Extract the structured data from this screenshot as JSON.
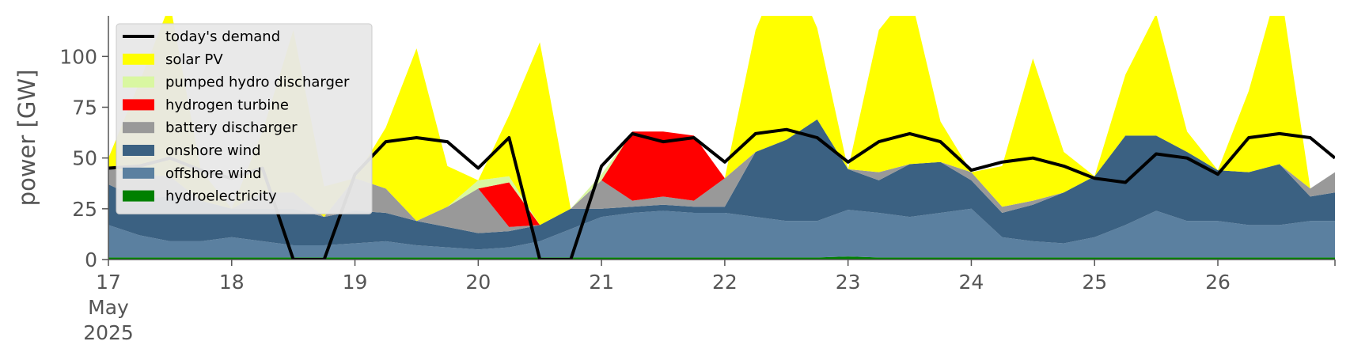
{
  "chart_data": {
    "type": "area",
    "title": "",
    "xlabel": "",
    "ylabel": "power [GW]",
    "x_start": "2025-05-17",
    "x_end": "2025-05-26 23:00",
    "xlim_days": [
      17,
      26.95
    ],
    "ylim": [
      0,
      120
    ],
    "yticks": [
      0,
      25,
      50,
      75,
      100
    ],
    "xtick_labels": [
      "17",
      "18",
      "19",
      "20",
      "21",
      "22",
      "23",
      "24",
      "25",
      "26"
    ],
    "xtick_sublabels": [
      "May",
      "2025"
    ],
    "grid": false,
    "legend_position": "upper-left",
    "x": [
      17.0,
      17.25,
      17.5,
      17.75,
      18.0,
      18.25,
      18.5,
      18.75,
      19.0,
      19.25,
      19.5,
      19.75,
      20.0,
      20.25,
      20.5,
      20.75,
      21.0,
      21.25,
      21.5,
      21.75,
      22.0,
      22.25,
      22.5,
      22.75,
      23.0,
      23.25,
      23.5,
      23.75,
      24.0,
      24.25,
      24.5,
      24.75,
      25.0,
      25.25,
      25.5,
      25.75,
      26.0,
      26.25,
      26.5,
      26.75,
      26.95
    ],
    "series": [
      {
        "name": "hydroelectricity",
        "color": "#008000",
        "values": [
          1,
          1,
          1,
          1,
          1,
          1,
          1,
          1,
          1,
          1,
          1,
          1,
          1,
          1,
          1,
          1,
          1,
          1,
          1,
          1,
          1,
          1,
          1,
          1,
          1.5,
          1,
          1,
          1,
          1,
          1,
          1,
          1,
          1,
          1,
          1,
          1,
          1,
          1,
          1,
          1,
          1
        ]
      },
      {
        "name": "offshore wind",
        "color": "#5b80a0",
        "values": [
          16,
          11,
          8,
          8,
          10,
          8,
          6,
          6,
          7,
          8,
          6,
          5,
          4,
          5,
          8,
          14,
          20,
          22,
          23,
          22,
          22,
          20,
          18,
          18,
          23,
          22,
          20,
          22,
          24,
          10,
          8,
          7,
          10,
          16,
          23,
          18,
          18,
          16,
          16,
          18,
          18
        ]
      },
      {
        "name": "onshore wind",
        "color": "#3b6182",
        "values": [
          20,
          18,
          22,
          20,
          14,
          16,
          18,
          14,
          16,
          14,
          12,
          10,
          8,
          8,
          8,
          10,
          4,
          3,
          3,
          3,
          3,
          32,
          40,
          50,
          20,
          16,
          26,
          25,
          14,
          12,
          18,
          25,
          30,
          44,
          37,
          34,
          25,
          26,
          30,
          12,
          14
        ]
      },
      {
        "name": "battery discharger",
        "color": "#999999",
        "values": [
          8,
          12,
          10,
          0,
          0,
          8,
          8,
          0,
          16,
          12,
          0,
          10,
          22,
          2,
          0,
          0,
          14,
          3,
          4,
          3,
          14,
          0,
          0,
          0,
          0,
          4,
          0,
          0,
          4,
          3,
          2,
          0,
          0,
          0,
          0,
          0,
          0,
          0,
          0,
          4,
          10
        ]
      },
      {
        "name": "hydrogen turbine",
        "color": "#ff0000",
        "values": [
          0,
          0,
          0,
          0,
          0,
          0,
          0,
          0,
          0,
          0,
          0,
          0,
          0,
          22,
          0,
          0,
          0,
          34,
          32,
          32,
          0,
          0,
          0,
          0,
          0,
          0,
          0,
          0,
          0,
          0,
          0,
          0,
          0,
          0,
          0,
          0,
          0,
          0,
          0,
          0,
          0
        ]
      },
      {
        "name": "pumped hydro discharger",
        "color": "#d9f7a1",
        "values": [
          0,
          0,
          0,
          0,
          0,
          0,
          0,
          0,
          0,
          0,
          0,
          0,
          4,
          3,
          0,
          0,
          3,
          0,
          0,
          0,
          0,
          0,
          0,
          0,
          0,
          0,
          0,
          0,
          0,
          0,
          0,
          0,
          0,
          0,
          0,
          0,
          0,
          0,
          0,
          0,
          0
        ]
      },
      {
        "name": "solar PV",
        "color": "#ffff00",
        "values": [
          5,
          45,
          85,
          15,
          0,
          30,
          80,
          15,
          0,
          30,
          85,
          20,
          0,
          30,
          90,
          0,
          0,
          0,
          0,
          0,
          0,
          60,
          90,
          45,
          0,
          70,
          85,
          20,
          0,
          20,
          70,
          20,
          0,
          30,
          60,
          10,
          0,
          40,
          90,
          0,
          0
        ]
      },
      {
        "name": "today's demand",
        "color": "#000000",
        "values": [
          45,
          46,
          50,
          44,
          40,
          45,
          0,
          0,
          42,
          58,
          60,
          58,
          45,
          60,
          0,
          0,
          46,
          62,
          58,
          60,
          48,
          62,
          64,
          60,
          48,
          58,
          62,
          58,
          44,
          48,
          50,
          46,
          40,
          38,
          52,
          50,
          42,
          60,
          62,
          60,
          50
        ]
      }
    ]
  }
}
